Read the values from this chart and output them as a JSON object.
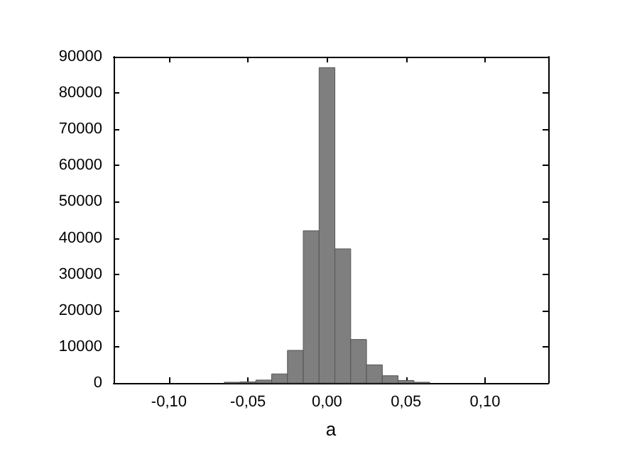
{
  "chart_data": {
    "type": "histogram",
    "xlabel": "a",
    "color": "#7f7f7f",
    "bins": [
      -0.065,
      -0.055,
      -0.045,
      -0.035,
      -0.025,
      -0.015,
      -0.005,
      0.005,
      0.015,
      0.025,
      0.035,
      0.045,
      0.055,
      0.065
    ],
    "values": [
      200,
      300,
      800,
      2500,
      9000,
      42000,
      87000,
      37000,
      12000,
      5000,
      2000,
      700,
      200
    ],
    "xlim": [
      -0.135,
      0.14
    ],
    "xticks": [
      {
        "value": -0.1,
        "label": "-0,10"
      },
      {
        "value": -0.05,
        "label": "-0,05"
      },
      {
        "value": 0,
        "label": "0,00"
      },
      {
        "value": 0.05,
        "label": "0,05"
      },
      {
        "value": 0.1,
        "label": "0,10"
      }
    ],
    "ylim": [
      0,
      90000
    ],
    "yticks": [
      0,
      10000,
      20000,
      30000,
      40000,
      50000,
      60000,
      70000,
      80000,
      90000
    ],
    "grid": false
  }
}
